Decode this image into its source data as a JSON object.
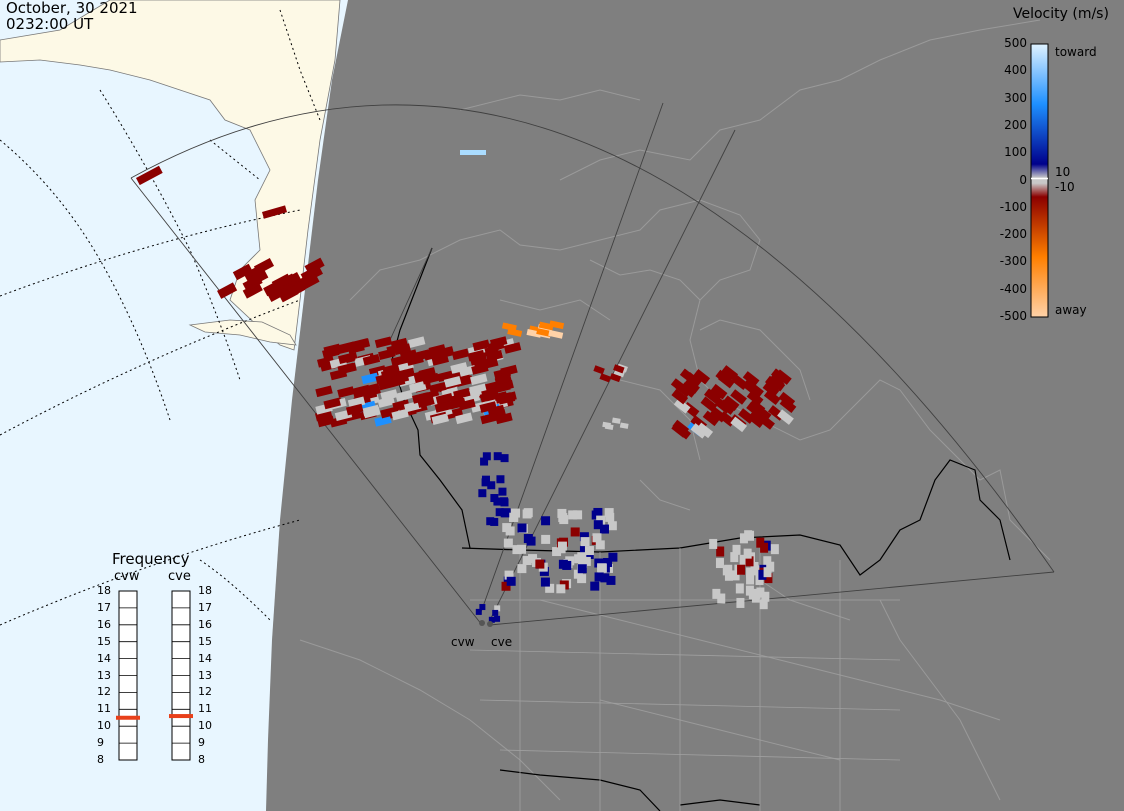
{
  "header": {
    "date": "October, 30 2021",
    "time": "0232:00 UT"
  },
  "velocity_scale": {
    "title": "Velocity (m/s)",
    "ticks": [
      "500",
      "400",
      "300",
      "200",
      "100",
      "0",
      "-100",
      "-200",
      "-300",
      "-400",
      "-500"
    ],
    "label_toward": "toward",
    "label_away": "away",
    "label_pos_threshold": "10",
    "label_neg_threshold": "-10",
    "colors": {
      "toward_strong": "#dff2ff",
      "toward_mid": "#1e90ff",
      "toward_weak": "#00008b",
      "ground": "#c8c8c8",
      "away_weak": "#8b0000",
      "away_mid": "#ff7f00",
      "away_strong": "#ffd2a8"
    }
  },
  "frequency_panel": {
    "title": "Frequency",
    "radars": [
      {
        "name": "cvw",
        "value_mhz": 10.5
      },
      {
        "name": "cve",
        "value_mhz": 10.6
      }
    ],
    "ticks": [
      "18",
      "17",
      "16",
      "15",
      "14",
      "13",
      "12",
      "11",
      "10",
      "9",
      "8"
    ],
    "indicator_color": "#e8401a"
  },
  "sites": [
    {
      "name": "cvw"
    },
    {
      "name": "cve"
    }
  ],
  "map": {
    "night_color": "#7f7f7f",
    "day_ocean_color": "#e8f6ff",
    "day_land_color": "#fdf9e6",
    "border_color": "#000000",
    "coast_color": "#9a9a9a"
  }
}
